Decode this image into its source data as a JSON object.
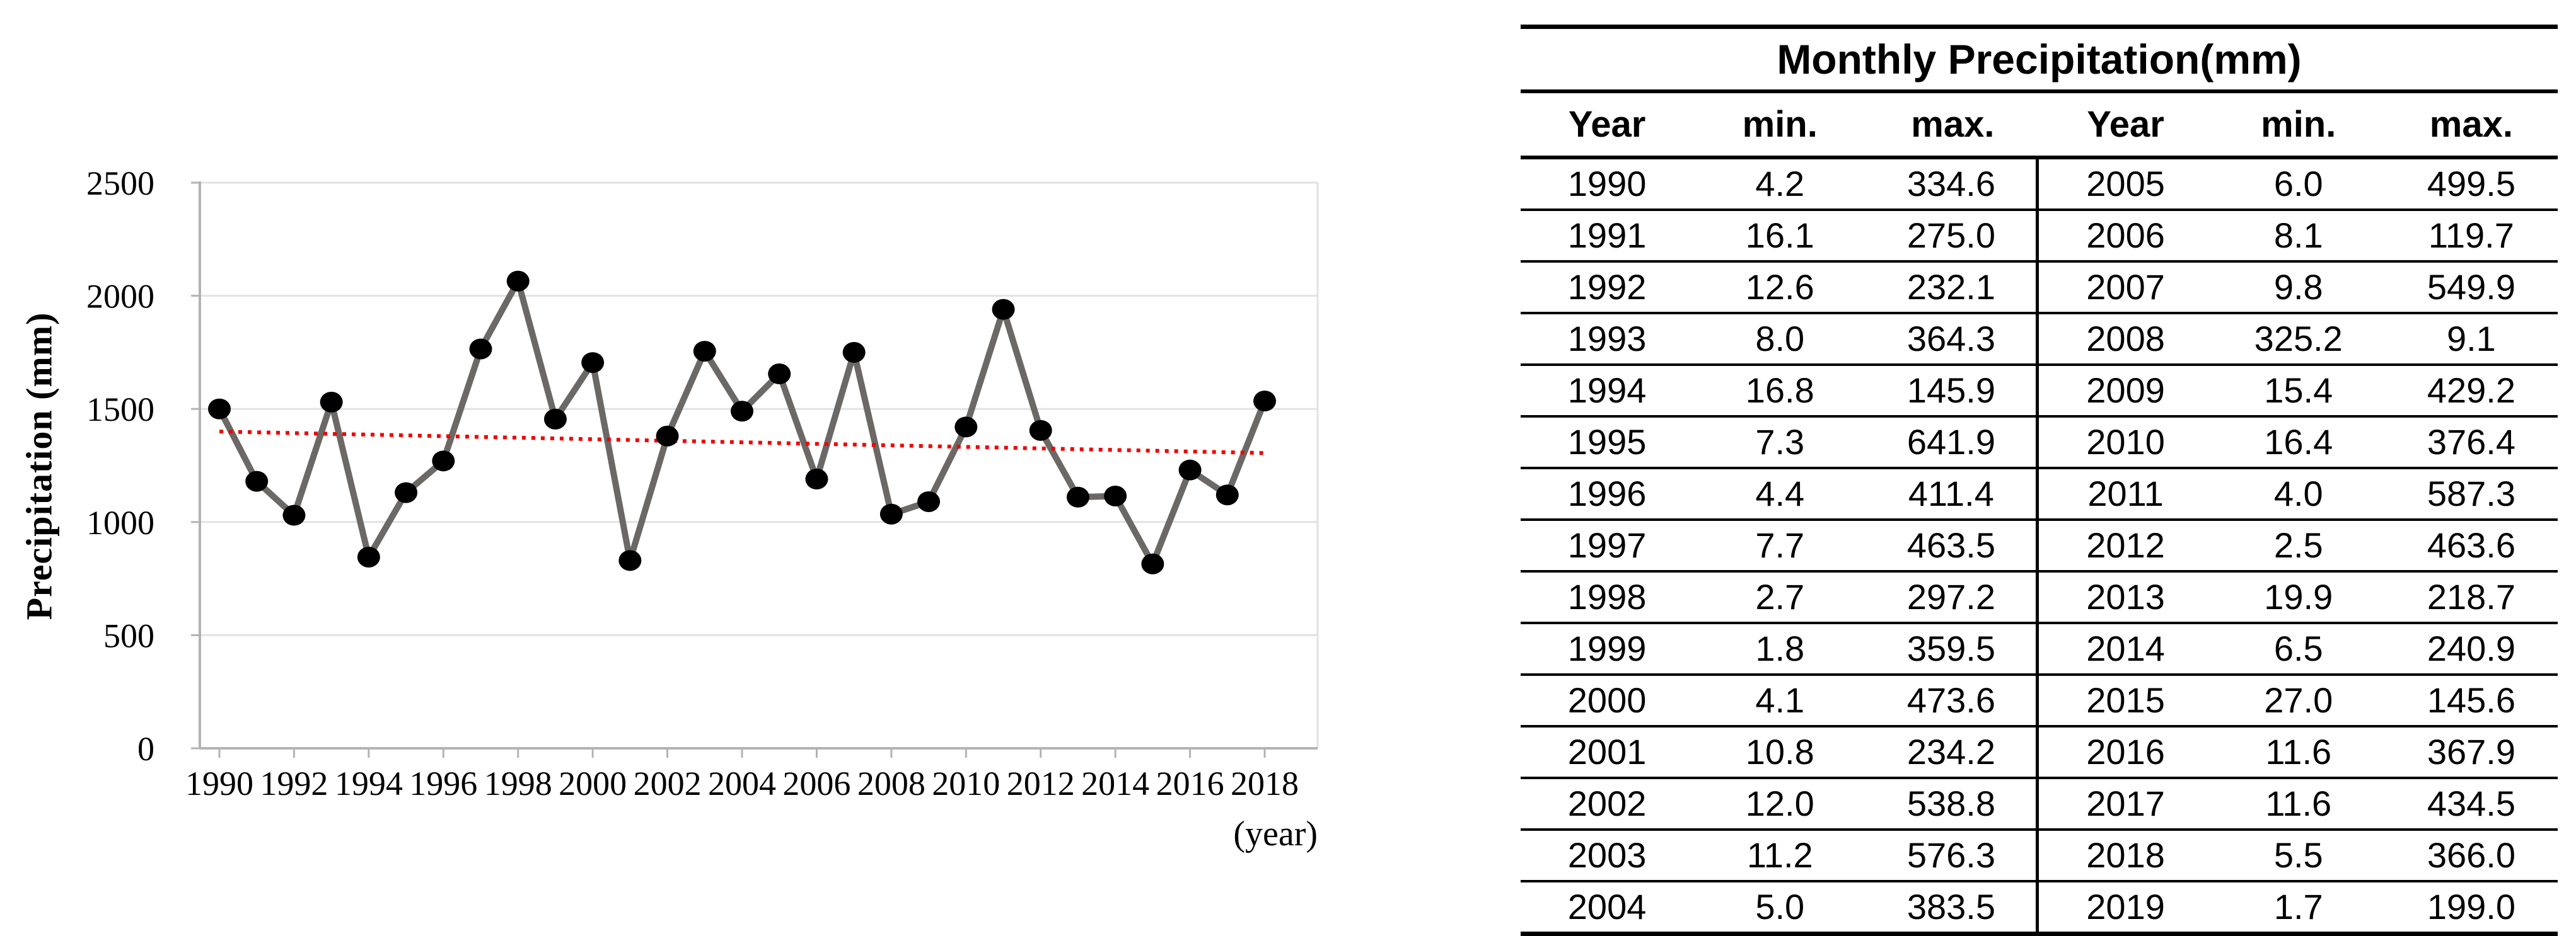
{
  "chart_data": {
    "type": "line",
    "title": "",
    "xlabel": "(year)",
    "ylabel": "Precipitation (mm)",
    "x": [
      1990,
      1991,
      1992,
      1993,
      1994,
      1995,
      1996,
      1997,
      1998,
      1999,
      2000,
      2001,
      2002,
      2003,
      2004,
      2005,
      2006,
      2007,
      2008,
      2009,
      2010,
      2011,
      2012,
      2013,
      2014,
      2015,
      2016,
      2017,
      2018
    ],
    "values": [
      1500,
      1180,
      1030,
      1530,
      845,
      1130,
      1270,
      1765,
      2065,
      1455,
      1705,
      830,
      1380,
      1755,
      1490,
      1655,
      1190,
      1750,
      1035,
      1090,
      1420,
      1940,
      1405,
      1110,
      1115,
      815,
      1230,
      1120,
      1535
    ],
    "ylim": [
      0,
      2500
    ],
    "yticks": [
      0,
      500,
      1000,
      1500,
      2000,
      2500
    ],
    "xticks": [
      1990,
      1992,
      1994,
      1996,
      1998,
      2000,
      2002,
      2004,
      2006,
      2008,
      2010,
      2012,
      2014,
      2016,
      2018
    ],
    "grid": true,
    "legend": "none",
    "trendline": {
      "style": "dotted",
      "start_value": 1400,
      "end_value": 1305
    },
    "colors": {
      "line": "#6b6865",
      "marker": "#000000",
      "trend": "#f00000",
      "gridline": "#e2e2e2",
      "axis": "#b3b3b3"
    }
  },
  "table": {
    "title": "Monthly Precipitation(mm)",
    "headers": [
      "Year",
      "min.",
      "max.",
      "Year",
      "min.",
      "max."
    ],
    "rows": [
      [
        "1990",
        "4.2",
        "334.6",
        "2005",
        "6.0",
        "499.5"
      ],
      [
        "1991",
        "16.1",
        "275.0",
        "2006",
        "8.1",
        "119.7"
      ],
      [
        "1992",
        "12.6",
        "232.1",
        "2007",
        "9.8",
        "549.9"
      ],
      [
        "1993",
        "8.0",
        "364.3",
        "2008",
        "325.2",
        "9.1"
      ],
      [
        "1994",
        "16.8",
        "145.9",
        "2009",
        "15.4",
        "429.2"
      ],
      [
        "1995",
        "7.3",
        "641.9",
        "2010",
        "16.4",
        "376.4"
      ],
      [
        "1996",
        "4.4",
        "411.4",
        "2011",
        "4.0",
        "587.3"
      ],
      [
        "1997",
        "7.7",
        "463.5",
        "2012",
        "2.5",
        "463.6"
      ],
      [
        "1998",
        "2.7",
        "297.2",
        "2013",
        "19.9",
        "218.7"
      ],
      [
        "1999",
        "1.8",
        "359.5",
        "2014",
        "6.5",
        "240.9"
      ],
      [
        "2000",
        "4.1",
        "473.6",
        "2015",
        "27.0",
        "145.6"
      ],
      [
        "2001",
        "10.8",
        "234.2",
        "2016",
        "11.6",
        "367.9"
      ],
      [
        "2002",
        "12.0",
        "538.8",
        "2017",
        "11.6",
        "434.5"
      ],
      [
        "2003",
        "11.2",
        "576.3",
        "2018",
        "5.5",
        "366.0"
      ],
      [
        "2004",
        "5.0",
        "383.5",
        "2019",
        "1.7",
        "199.0"
      ]
    ]
  }
}
